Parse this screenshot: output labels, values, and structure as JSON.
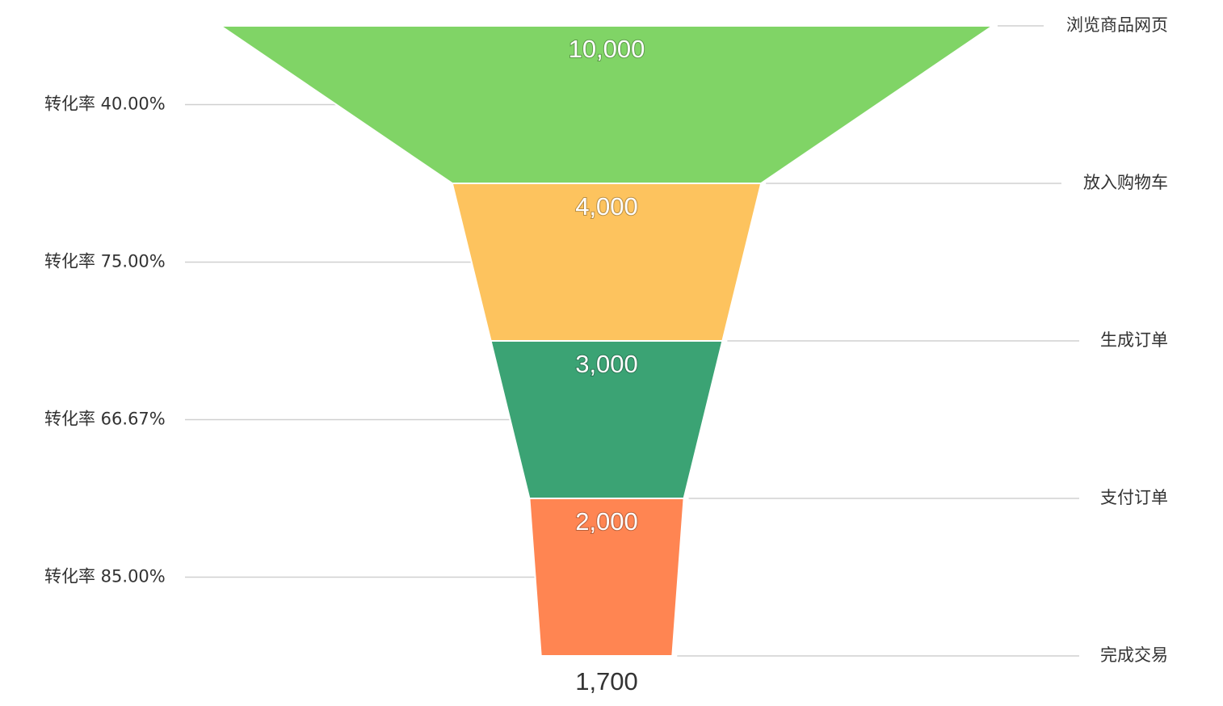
{
  "chart_data": {
    "type": "funnel",
    "stages": [
      "浏览商品网页",
      "放入购物车",
      "生成订单",
      "支付订单",
      "完成交易"
    ],
    "values": [
      10000,
      4000,
      3000,
      2000,
      1700
    ],
    "value_labels": [
      "10,000",
      "4,000",
      "3,000",
      "2,000",
      "1,700"
    ],
    "conversion_rates": [
      "转化率 40.00%",
      "转化率 75.00%",
      "转化率 66.67%",
      "转化率 85.00%"
    ],
    "colors": [
      "#80d466",
      "#fdc35e",
      "#3ba374",
      "#ff8552"
    ]
  }
}
